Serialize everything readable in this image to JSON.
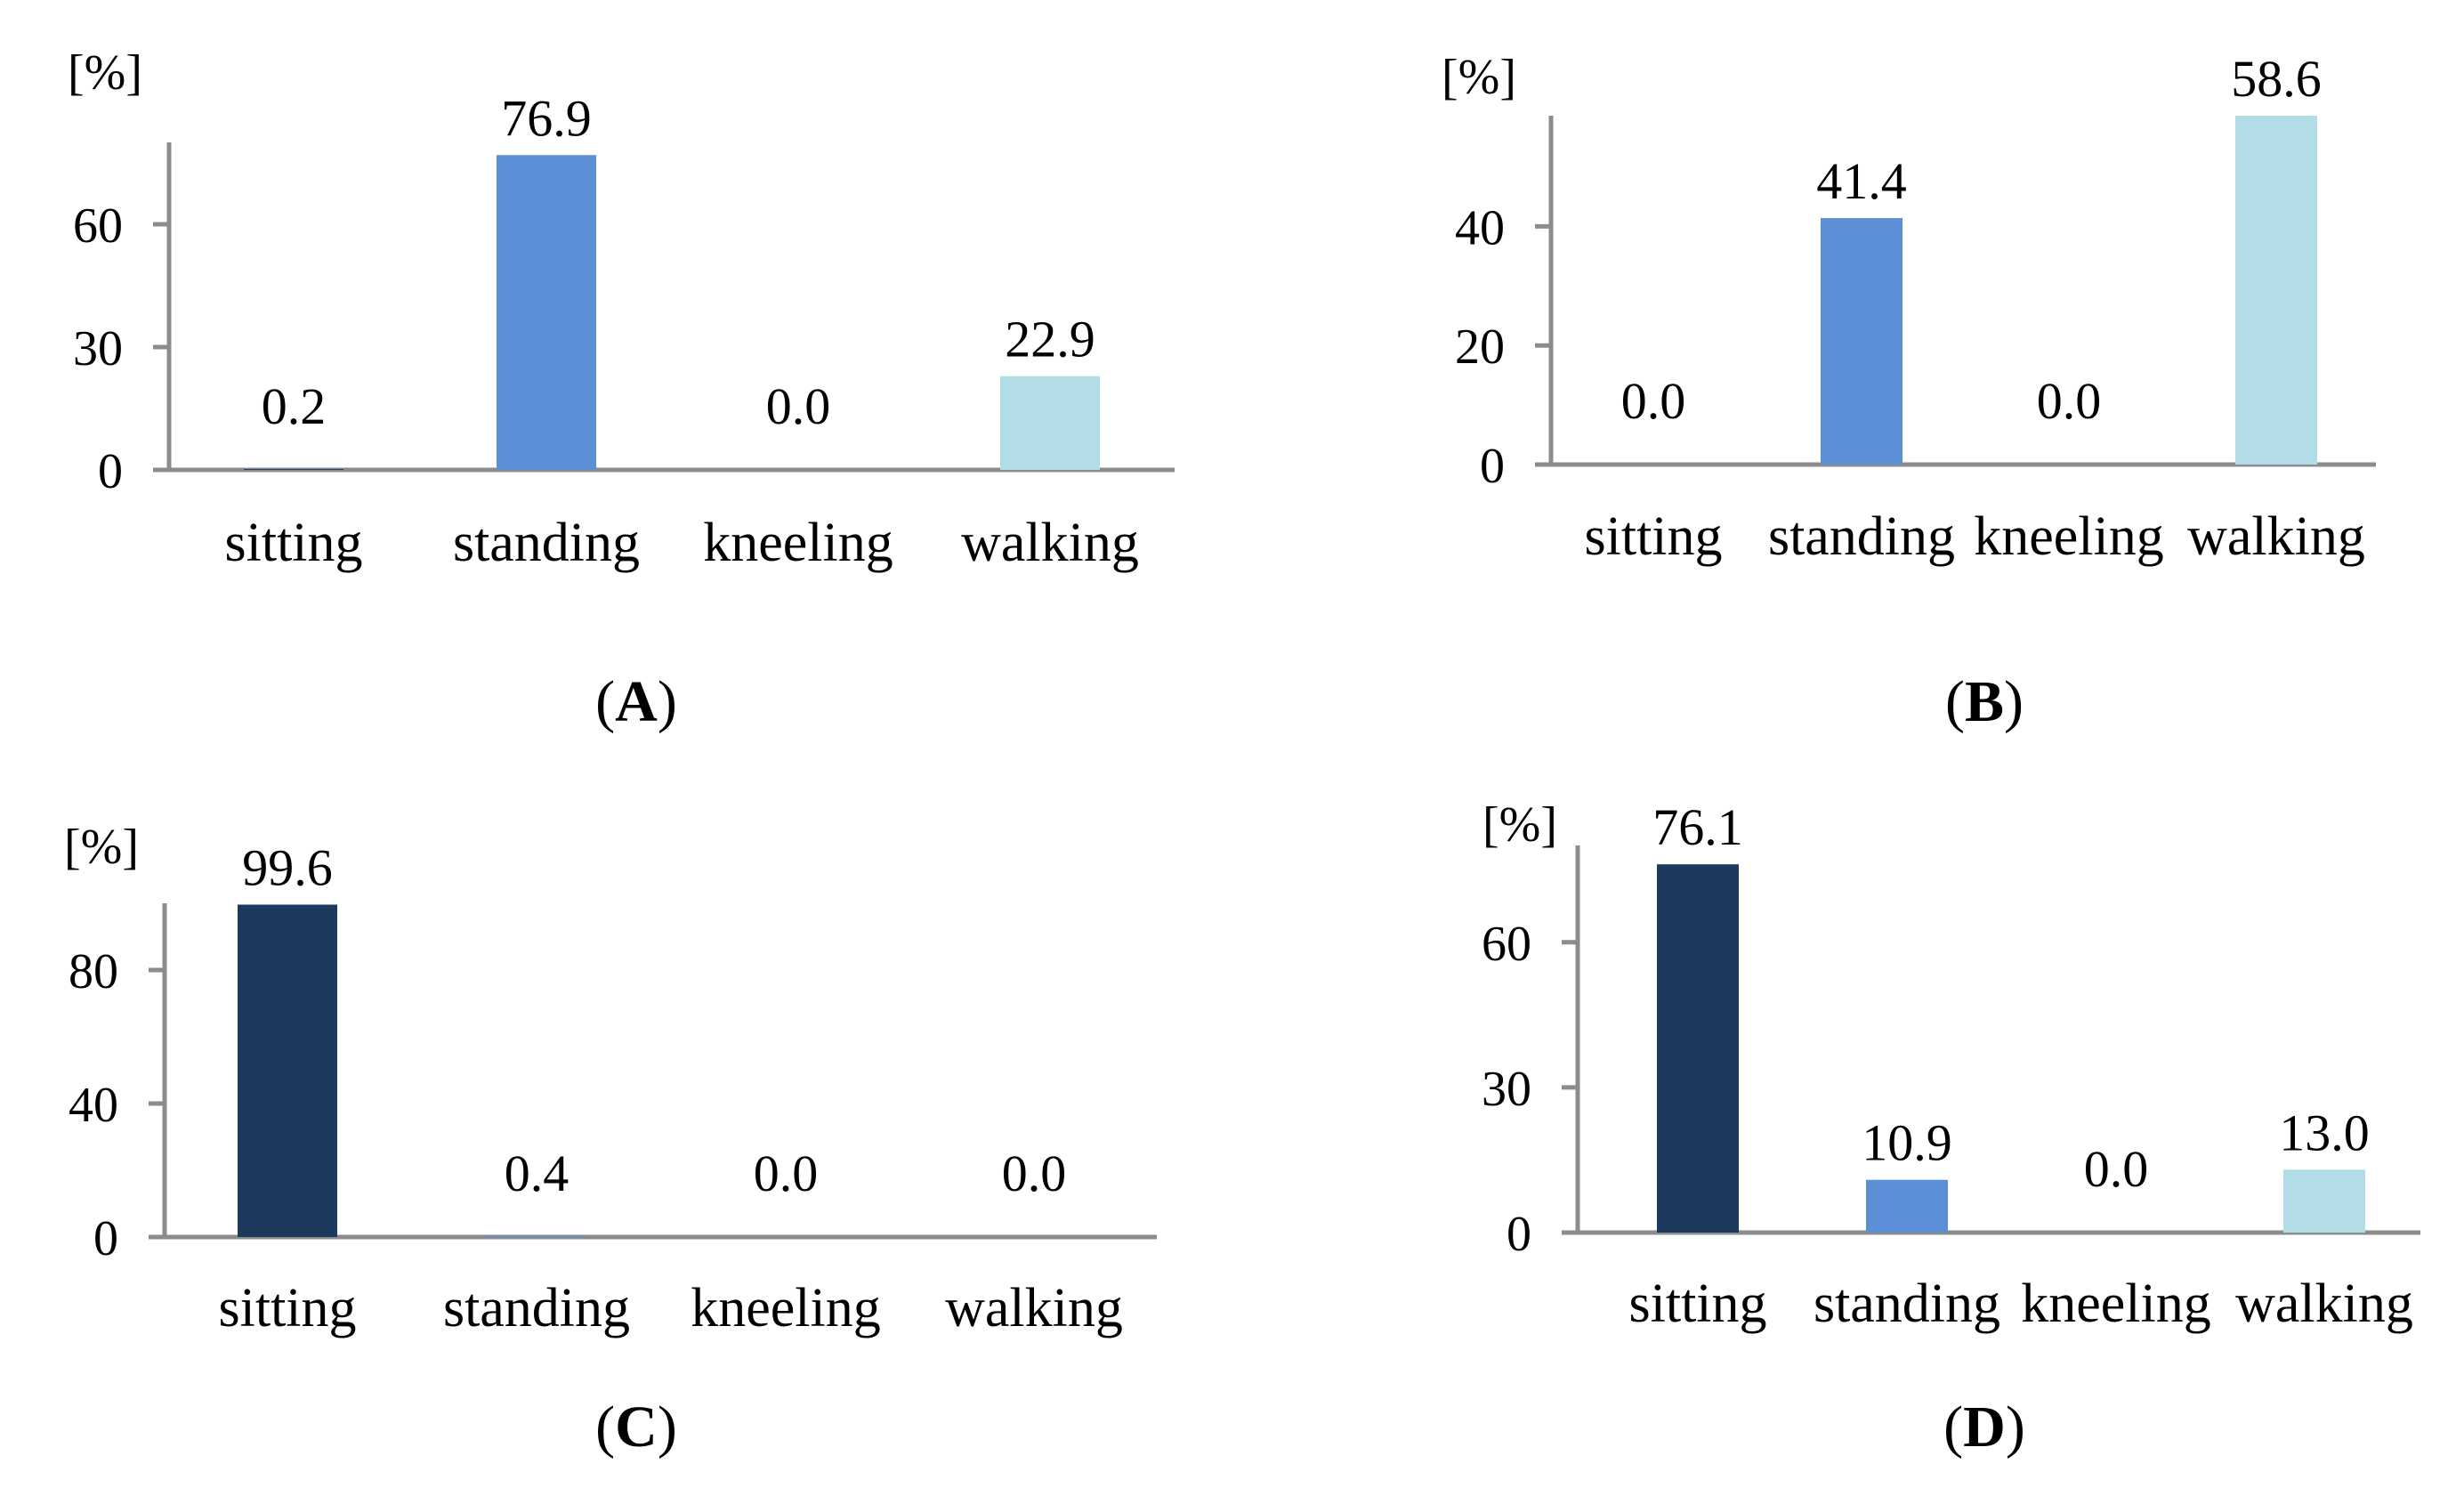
{
  "colors": {
    "sitting": "#1c3a5e",
    "standing": "#5b8fd6",
    "kneeling": "#2d4f7a",
    "walking": "#b2dce6",
    "axis": "#8c8c8c"
  },
  "chart_data": [
    {
      "id": "A",
      "type": "bar",
      "panel_label": "A",
      "unit_label": "[%]",
      "categories": [
        "sitting",
        "standing",
        "kneeling",
        "walking"
      ],
      "values": [
        0.2,
        76.9,
        0.0,
        22.9
      ],
      "value_labels": [
        "0.2",
        "76.9",
        "0.0",
        "22.9"
      ],
      "yticks": [
        0,
        30,
        60
      ],
      "ytick_labels": [
        "0",
        "30",
        "60"
      ],
      "ylim": [
        0,
        80
      ]
    },
    {
      "id": "B",
      "type": "bar",
      "panel_label": "B",
      "unit_label": "[%]",
      "categories": [
        "sitting",
        "standing",
        "kneeling",
        "walking"
      ],
      "values": [
        0.0,
        41.4,
        0.0,
        58.6
      ],
      "value_labels": [
        "0.0",
        "41.4",
        "0.0",
        "58.6"
      ],
      "yticks": [
        0,
        20,
        40
      ],
      "ytick_labels": [
        "0",
        "20",
        "40"
      ],
      "ylim": [
        0,
        58.6
      ]
    },
    {
      "id": "C",
      "type": "bar",
      "panel_label": "C",
      "unit_label": "[%]",
      "categories": [
        "sitting",
        "standing",
        "kneeling",
        "walking"
      ],
      "values": [
        99.6,
        0.4,
        0.0,
        0.0
      ],
      "value_labels": [
        "99.6",
        "0.4",
        "0.0",
        "0.0"
      ],
      "yticks": [
        0,
        40,
        80
      ],
      "ytick_labels": [
        "0",
        "40",
        "80"
      ],
      "ylim": [
        0,
        100
      ]
    },
    {
      "id": "D",
      "type": "bar",
      "panel_label": "D",
      "unit_label": "[%]",
      "categories": [
        "sitting",
        "standing",
        "kneeling",
        "walking"
      ],
      "values": [
        76.1,
        10.9,
        0.0,
        13.0
      ],
      "value_labels": [
        "76.1",
        "10.9",
        "0.0",
        "13.0"
      ],
      "yticks": [
        0,
        30,
        60
      ],
      "ytick_labels": [
        "0",
        "30",
        "60"
      ],
      "ylim": [
        0,
        80
      ]
    }
  ]
}
